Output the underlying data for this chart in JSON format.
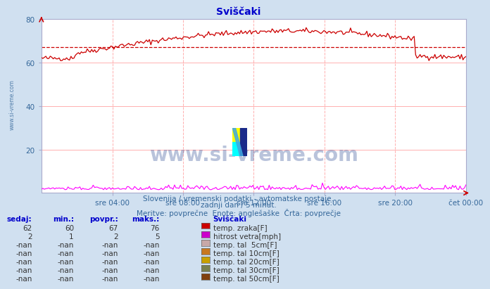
{
  "title": "Sviščaki",
  "bg_color": "#d0e0f0",
  "plot_bg_color": "#ffffff",
  "x_tick_labels": [
    "sre 04:00",
    "sre 08:00",
    "sre 12:00",
    "sre 16:00",
    "sre 20:00",
    "čet 00:00"
  ],
  "x_tick_positions": [
    0.167,
    0.333,
    0.5,
    0.667,
    0.833,
    1.0
  ],
  "ylim": [
    0,
    80
  ],
  "yticks": [
    20,
    40,
    60,
    80
  ],
  "title_color": "#0000cc",
  "tick_label_color": "#336699",
  "subtitle1": "Slovenija / vremenski podatki - avtomatske postaje.",
  "subtitle2": "zadnji dan / 5 minut.",
  "subtitle3": "Meritve: povprečne  Enote: anglešaške  Črta: povprečje",
  "subtitle_color": "#336699",
  "watermark": "www.si-vreme.com",
  "watermark_color": "#1a3a8a",
  "watermark_alpha": 0.3,
  "n_points": 288,
  "temp_color": "#cc0000",
  "wind_color": "#ff00ff",
  "avg_value": 67,
  "table_headers": [
    "sedaj:",
    "min.:",
    "povpr.:",
    "maks.:",
    "Sviščaki"
  ],
  "table_header_color": "#0000cc",
  "table_data": [
    [
      "62",
      "60",
      "67",
      "76",
      "temp. zraka[F]",
      "#cc0000"
    ],
    [
      "2",
      "1",
      "2",
      "5",
      "hitrost vetra[mph]",
      "#cc00cc"
    ],
    [
      "-nan",
      "-nan",
      "-nan",
      "-nan",
      "temp. tal  5cm[F]",
      "#c8a8a8"
    ],
    [
      "-nan",
      "-nan",
      "-nan",
      "-nan",
      "temp. tal 10cm[F]",
      "#c87820"
    ],
    [
      "-nan",
      "-nan",
      "-nan",
      "-nan",
      "temp. tal 20cm[F]",
      "#c8a000"
    ],
    [
      "-nan",
      "-nan",
      "-nan",
      "-nan",
      "temp. tal 30cm[F]",
      "#788050"
    ],
    [
      "-nan",
      "-nan",
      "-nan",
      "-nan",
      "temp. tal 50cm[F]",
      "#804010"
    ]
  ],
  "left_label": "www.si-vreme.com"
}
